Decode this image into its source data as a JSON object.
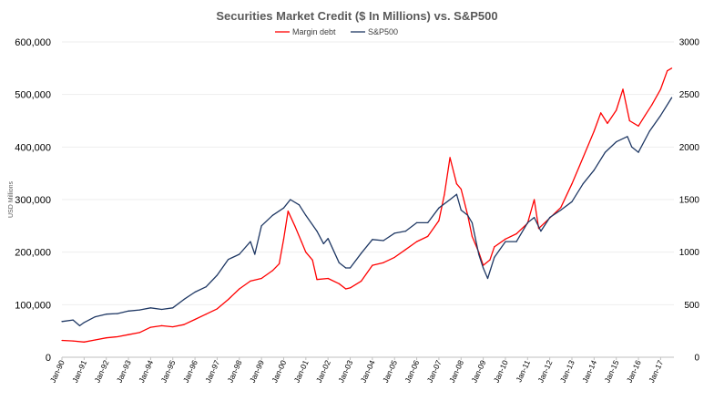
{
  "chart_data": {
    "type": "line",
    "title": "Securities Market Credit ($ In Millions) vs. S&P500",
    "ylabel": "USD Millions",
    "ylabel_right": "",
    "ylim": [
      0,
      600000
    ],
    "ylim_right": [
      0,
      3000
    ],
    "y_ticks": [
      "0",
      "100,000",
      "200,000",
      "300,000",
      "400,000",
      "500,000",
      "600,000"
    ],
    "y_ticks_right": [
      "0",
      "500",
      "1000",
      "1500",
      "2000",
      "2500",
      "3000"
    ],
    "x_ticks": [
      "Jan-90",
      "Jan-91",
      "Jan-92",
      "Jan-93",
      "Jan-94",
      "Jan-95",
      "Jan-96",
      "Jan-97",
      "Jan-98",
      "Jan-99",
      "Jan-00",
      "Jan-01",
      "Jan-02",
      "Jan-03",
      "Jan-04",
      "Jan-05",
      "Jan-06",
      "Jan-07",
      "Jan-08",
      "Jan-09",
      "Jan-10",
      "Jan-11",
      "Jan-12",
      "Jan-13",
      "Jan-14",
      "Jan-15",
      "Jan-16",
      "Jan-17"
    ],
    "grid": true,
    "legend_position": "top-center",
    "series": [
      {
        "name": "Margin debt",
        "axis": "left",
        "color": "#ff0000",
        "x": [
          1990.0,
          1990.5,
          1991.0,
          1991.5,
          1992.0,
          1992.5,
          1993.0,
          1993.5,
          1994.0,
          1994.5,
          1995.0,
          1995.5,
          1996.0,
          1996.5,
          1997.0,
          1997.5,
          1998.0,
          1998.5,
          1999.0,
          1999.5,
          1999.8,
          2000.0,
          2000.2,
          2000.5,
          2000.8,
          2001.0,
          2001.3,
          2001.5,
          2002.0,
          2002.5,
          2002.8,
          2003.0,
          2003.5,
          2004.0,
          2004.5,
          2005.0,
          2005.5,
          2006.0,
          2006.5,
          2007.0,
          2007.25,
          2007.5,
          2007.8,
          2008.0,
          2008.3,
          2008.5,
          2008.8,
          2009.0,
          2009.3,
          2009.5,
          2010.0,
          2010.5,
          2011.0,
          2011.3,
          2011.5,
          2012.0,
          2012.5,
          2013.0,
          2013.5,
          2014.0,
          2014.3,
          2014.6,
          2015.0,
          2015.3,
          2015.6,
          2016.0,
          2016.3,
          2016.6,
          2017.0,
          2017.3,
          2017.5
        ],
        "values": [
          32000,
          31000,
          29000,
          33000,
          37000,
          39000,
          43000,
          47000,
          57000,
          60000,
          58000,
          62000,
          72000,
          82000,
          92000,
          110000,
          130000,
          145000,
          150000,
          165000,
          178000,
          225000,
          278000,
          250000,
          220000,
          200000,
          185000,
          148000,
          150000,
          140000,
          130000,
          132000,
          145000,
          175000,
          180000,
          190000,
          205000,
          220000,
          230000,
          260000,
          310000,
          380000,
          330000,
          320000,
          270000,
          230000,
          200000,
          175000,
          185000,
          210000,
          225000,
          235000,
          255000,
          300000,
          245000,
          265000,
          285000,
          330000,
          380000,
          430000,
          465000,
          445000,
          470000,
          510000,
          450000,
          440000,
          460000,
          480000,
          510000,
          545000,
          550000
        ]
      },
      {
        "name": "S&P500",
        "axis": "right",
        "color": "#1f3864",
        "x": [
          1990.0,
          1990.5,
          1990.8,
          1991.0,
          1991.5,
          1992.0,
          1992.5,
          1993.0,
          1993.5,
          1994.0,
          1994.5,
          1995.0,
          1995.5,
          1996.0,
          1996.5,
          1997.0,
          1997.5,
          1998.0,
          1998.5,
          1998.7,
          1999.0,
          1999.5,
          2000.0,
          2000.3,
          2000.7,
          2001.0,
          2001.5,
          2001.8,
          2002.0,
          2002.5,
          2002.8,
          2003.0,
          2003.5,
          2004.0,
          2004.5,
          2005.0,
          2005.5,
          2006.0,
          2006.5,
          2007.0,
          2007.5,
          2007.8,
          2008.0,
          2008.3,
          2008.5,
          2008.8,
          2009.0,
          2009.2,
          2009.5,
          2010.0,
          2010.5,
          2011.0,
          2011.3,
          2011.6,
          2012.0,
          2012.5,
          2013.0,
          2013.5,
          2014.0,
          2014.5,
          2015.0,
          2015.5,
          2015.7,
          2016.0,
          2016.5,
          2017.0,
          2017.5
        ],
        "values": [
          340,
          355,
          300,
          330,
          385,
          410,
          415,
          440,
          450,
          470,
          455,
          470,
          550,
          620,
          670,
          780,
          930,
          980,
          1100,
          980,
          1250,
          1350,
          1420,
          1500,
          1450,
          1350,
          1200,
          1080,
          1130,
          900,
          850,
          850,
          990,
          1120,
          1110,
          1180,
          1200,
          1280,
          1280,
          1420,
          1500,
          1550,
          1400,
          1350,
          1280,
          980,
          850,
          750,
          950,
          1100,
          1100,
          1280,
          1330,
          1200,
          1330,
          1400,
          1480,
          1650,
          1780,
          1950,
          2050,
          2100,
          2000,
          1950,
          2150,
          2300,
          2470
        ]
      }
    ]
  }
}
